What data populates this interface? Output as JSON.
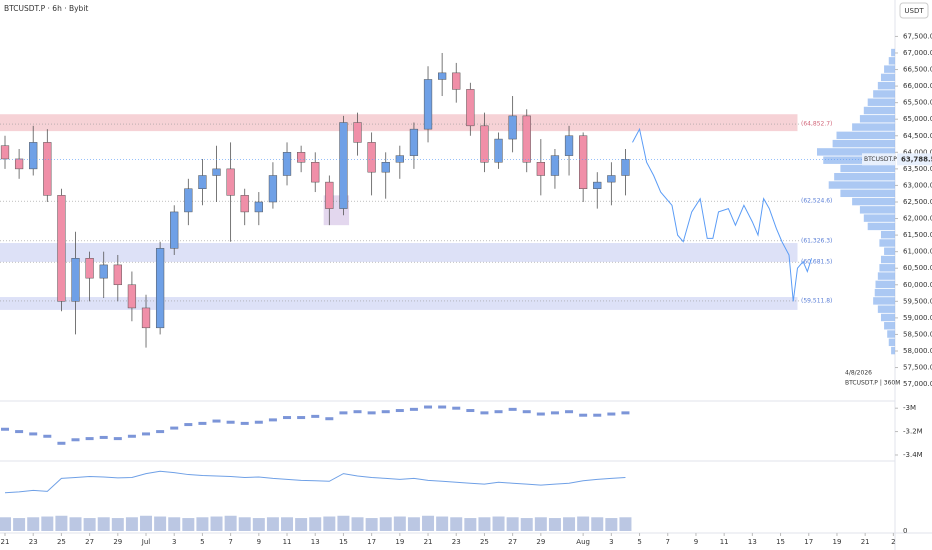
{
  "chart_data": {
    "type": "candlestick",
    "title": "BTCUSDT.P · 6h · Bybit",
    "currency": "USDT",
    "symbol_tag": "BTCUSDT.P",
    "last_price": 63788.5,
    "last_price_label": "63,788.5",
    "date_stamp": "4/8/2026",
    "info_label": "BTCUSDT.P | 360M",
    "up_color": "#6fa0e6",
    "down_color": "#f08fa8",
    "xlim": [
      -0.355,
      65.74
    ],
    "xticks": [
      {
        "value": 0,
        "label": "21"
      },
      {
        "value": 2,
        "label": "23"
      },
      {
        "value": 4,
        "label": "25"
      },
      {
        "value": 6,
        "label": "27"
      },
      {
        "value": 8,
        "label": "29"
      },
      {
        "value": 10,
        "label": "Jul"
      },
      {
        "value": 12,
        "label": "3"
      },
      {
        "value": 14,
        "label": "5"
      },
      {
        "value": 16,
        "label": "7"
      },
      {
        "value": 18,
        "label": "9"
      },
      {
        "value": 20,
        "label": "11"
      },
      {
        "value": 22,
        "label": "13"
      },
      {
        "value": 24,
        "label": "15"
      },
      {
        "value": 26,
        "label": "17"
      },
      {
        "value": 28,
        "label": "19"
      },
      {
        "value": 30,
        "label": "21"
      },
      {
        "value": 32,
        "label": "23"
      },
      {
        "value": 34,
        "label": "25"
      },
      {
        "value": 36,
        "label": "27"
      },
      {
        "value": 38,
        "label": "29"
      },
      {
        "value": 41,
        "label": "Aug"
      },
      {
        "value": 43,
        "label": "3"
      },
      {
        "value": 45,
        "label": "5"
      },
      {
        "value": 47,
        "label": "7"
      },
      {
        "value": 49,
        "label": "9"
      },
      {
        "value": 51,
        "label": "11"
      },
      {
        "value": 53,
        "label": "13"
      },
      {
        "value": 55,
        "label": "15"
      },
      {
        "value": 57,
        "label": "17"
      },
      {
        "value": 59,
        "label": "19"
      },
      {
        "value": 61,
        "label": "21"
      },
      {
        "value": 63,
        "label": "2"
      }
    ],
    "ylim": [
      56520,
      68600
    ],
    "yticks": [
      {
        "value": 57000,
        "label": "57,000.0"
      },
      {
        "value": 57500,
        "label": "57,500.0"
      },
      {
        "value": 58000,
        "label": "58,000.0"
      },
      {
        "value": 58500,
        "label": "58,500.0"
      },
      {
        "value": 59000,
        "label": "59,000.0"
      },
      {
        "value": 59500,
        "label": "59,500.0"
      },
      {
        "value": 60000,
        "label": "60,000.0"
      },
      {
        "value": 60500,
        "label": "60,500.0"
      },
      {
        "value": 61000,
        "label": "61,000.0"
      },
      {
        "value": 61500,
        "label": "61,500.0"
      },
      {
        "value": 62000,
        "label": "62,000.0"
      },
      {
        "value": 62500,
        "label": "62,500.0"
      },
      {
        "value": 63000,
        "label": "63,000.0"
      },
      {
        "value": 63500,
        "label": "63,500.0"
      },
      {
        "value": 64000,
        "label": "64,000.0"
      },
      {
        "value": 64500,
        "label": "64,500.0"
      },
      {
        "value": 65000,
        "label": "65,000.0"
      },
      {
        "value": 65500,
        "label": "65,500.0"
      },
      {
        "value": 66000,
        "label": "66,000.0"
      },
      {
        "value": 66500,
        "label": "66,500.0"
      },
      {
        "value": 67000,
        "label": "67,000.0"
      },
      {
        "value": 67500,
        "label": "67,500.0"
      }
    ],
    "candles": {
      "x": [
        0,
        1,
        2,
        3,
        4,
        5,
        6,
        7,
        8,
        9,
        10,
        11,
        12,
        13,
        14,
        15,
        16,
        17,
        18,
        19,
        20,
        21,
        22,
        23,
        24,
        25,
        26,
        27,
        28,
        29,
        30,
        31,
        32,
        33,
        34,
        35,
        36,
        37,
        38,
        39,
        40,
        41,
        42,
        43,
        44
      ],
      "open": [
        64200,
        63800,
        63500,
        64300,
        62700,
        59500,
        60800,
        60200,
        60600,
        60000,
        59300,
        58700,
        61100,
        62200,
        62900,
        63300,
        63500,
        62700,
        62200,
        62500,
        63300,
        64000,
        63700,
        63100,
        62300,
        64900,
        64300,
        63400,
        63700,
        63900,
        64700,
        66200,
        66400,
        65900,
        64800,
        63700,
        64400,
        65100,
        63700,
        63300,
        63900,
        64500,
        62900,
        63100,
        63300
      ],
      "high": [
        64500,
        64100,
        64800,
        64700,
        62900,
        61600,
        61000,
        61000,
        60900,
        60400,
        59700,
        61300,
        62400,
        63200,
        63800,
        64200,
        64300,
        62900,
        62800,
        63700,
        64300,
        64200,
        64000,
        63300,
        65100,
        65200,
        64600,
        64000,
        64200,
        64900,
        66600,
        67000,
        66700,
        66100,
        65200,
        64600,
        65700,
        65300,
        64400,
        64100,
        64800,
        64600,
        63400,
        63700,
        64100
      ],
      "low": [
        63500,
        63200,
        63300,
        62500,
        59200,
        58500,
        59500,
        59600,
        59500,
        58900,
        58100,
        58500,
        60900,
        61800,
        62400,
        62500,
        61300,
        61800,
        61800,
        62300,
        63000,
        63400,
        62800,
        61800,
        62100,
        63900,
        62700,
        62600,
        63200,
        63500,
        64300,
        65700,
        65500,
        64500,
        63400,
        63500,
        64000,
        63400,
        62700,
        62900,
        63300,
        62500,
        62300,
        62400,
        62700
      ],
      "close": [
        63800,
        63500,
        64300,
        62700,
        59500,
        60800,
        60200,
        60600,
        60000,
        59300,
        58700,
        61100,
        62200,
        62900,
        63300,
        63500,
        62700,
        62200,
        62500,
        63300,
        64000,
        63700,
        63100,
        62300,
        64900,
        64300,
        63400,
        63700,
        63900,
        64700,
        66200,
        66400,
        65900,
        64800,
        63700,
        64400,
        65100,
        63700,
        63300,
        63900,
        64500,
        62900,
        63100,
        63300,
        63788.5
      ]
    },
    "zones": [
      {
        "x": [
          -0.355,
          56.2
        ],
        "low": 64640,
        "high": 65150,
        "color": "#f4c7cc"
      },
      {
        "x": [
          -0.355,
          56.2
        ],
        "low": 60690,
        "high": 61260,
        "color": "#d5daf5"
      },
      {
        "x": [
          -0.355,
          56.2
        ],
        "low": 59240,
        "high": 59630,
        "color": "#d5daf5"
      },
      {
        "x": [
          22.6,
          24.4
        ],
        "low": 61800,
        "high": 62700,
        "color": "#dccdea"
      }
    ],
    "levels": [
      {
        "value": 64852.7,
        "label": "(64,852.7)",
        "color": "#d2677a"
      },
      {
        "value": 62524.6,
        "label": "(62,524.6)",
        "color": "#5b7fd6"
      },
      {
        "value": 61326.3,
        "label": "(61,326.3)",
        "color": "#5b7fd6"
      },
      {
        "value": 60681.5,
        "label": "(60,681.5)",
        "color": "#5b7fd6"
      },
      {
        "value": 59511.8,
        "label": "(59,511.8)",
        "color": "#5b7fd6"
      }
    ],
    "projection": {
      "color": "#5b9cf6",
      "x": [
        44.5,
        45,
        45.5,
        46,
        46.5,
        47.3,
        47.7,
        48.1,
        48.7,
        49.3,
        49.8,
        50.2,
        50.6,
        51.3,
        51.8,
        52.4,
        53,
        53.4,
        53.8,
        54.2,
        54.7,
        55.1,
        55.6,
        55.9,
        56.2,
        56.6,
        56.9,
        57.2
      ],
      "values": [
        64300,
        64700,
        63700,
        63300,
        62800,
        62400,
        61500,
        61300,
        62200,
        62600,
        61400,
        61400,
        62200,
        62300,
        61800,
        62400,
        61900,
        61500,
        62600,
        62300,
        61700,
        61300,
        60900,
        59500,
        60500,
        60700,
        60400,
        60800
      ]
    },
    "volume_profile": {
      "color": "#8fb5ef",
      "xlim": [
        0,
        100
      ],
      "prices": [
        58000,
        58250,
        58500,
        58750,
        59000,
        59250,
        59500,
        59750,
        60000,
        60250,
        60500,
        60750,
        61000,
        61250,
        61500,
        61750,
        62000,
        62250,
        62500,
        62750,
        63000,
        63250,
        63500,
        63750,
        64000,
        64250,
        64500,
        64750,
        65000,
        65250,
        65500,
        65750,
        66000,
        66250,
        66500,
        66750,
        67000
      ],
      "values": [
        5,
        8,
        10,
        14,
        18,
        22,
        28,
        26,
        25,
        22,
        20,
        18,
        14,
        20,
        18,
        35,
        40,
        45,
        55,
        70,
        85,
        78,
        70,
        92,
        100,
        80,
        75,
        55,
        45,
        40,
        35,
        28,
        22,
        18,
        14,
        8,
        5
      ]
    },
    "indicator": {
      "color": "#7c95d8",
      "ylim": [
        -3.46,
        -2.93
      ],
      "yticks": [
        {
          "value": -3,
          "label": "-3M"
        },
        {
          "value": -3.2,
          "label": "-3.2M"
        },
        {
          "value": -3.4,
          "label": "-3.4M"
        }
      ],
      "values": [
        -3.18,
        -3.2,
        -3.22,
        -3.24,
        -3.3,
        -3.27,
        -3.26,
        -3.25,
        -3.26,
        -3.24,
        -3.22,
        -3.2,
        -3.17,
        -3.14,
        -3.13,
        -3.11,
        -3.12,
        -3.13,
        -3.12,
        -3.1,
        -3.08,
        -3.08,
        -3.07,
        -3.09,
        -3.04,
        -3.03,
        -3.04,
        -3.03,
        -3.02,
        -3.01,
        -2.99,
        -2.99,
        -3.0,
        -3.02,
        -3.04,
        -3.03,
        -3.01,
        -3.03,
        -3.05,
        -3.04,
        -3.03,
        -3.06,
        -3.06,
        -3.05,
        -3.04
      ]
    },
    "oscillator": {
      "color": "#6fa0e6",
      "ylim": [
        0,
        100
      ],
      "values": [
        40,
        42,
        45,
        43,
        70,
        72,
        74,
        73,
        71,
        72,
        80,
        85,
        82,
        78,
        76,
        75,
        74,
        72,
        73,
        70,
        68,
        66,
        65,
        64,
        80,
        75,
        72,
        70,
        68,
        70,
        66,
        64,
        62,
        60,
        58,
        62,
        60,
        58,
        56,
        58,
        60,
        65,
        68,
        70,
        72
      ]
    },
    "volume": {
      "color": "#aab9dc",
      "ylim": [
        0,
        1.05
      ],
      "yticks": [
        0
      ],
      "values": [
        0.9,
        0.85,
        0.9,
        0.95,
        1,
        0.9,
        0.85,
        0.9,
        0.85,
        0.9,
        1,
        0.95,
        0.9,
        0.85,
        0.9,
        0.95,
        1,
        0.9,
        0.85,
        0.9,
        0.9,
        0.85,
        0.9,
        0.95,
        1,
        0.9,
        0.85,
        0.9,
        0.95,
        0.9,
        1,
        0.95,
        0.9,
        0.85,
        0.9,
        0.95,
        0.9,
        0.85,
        0.9,
        0.85,
        0.9,
        0.95,
        0.9,
        0.85,
        0.9
      ]
    }
  }
}
